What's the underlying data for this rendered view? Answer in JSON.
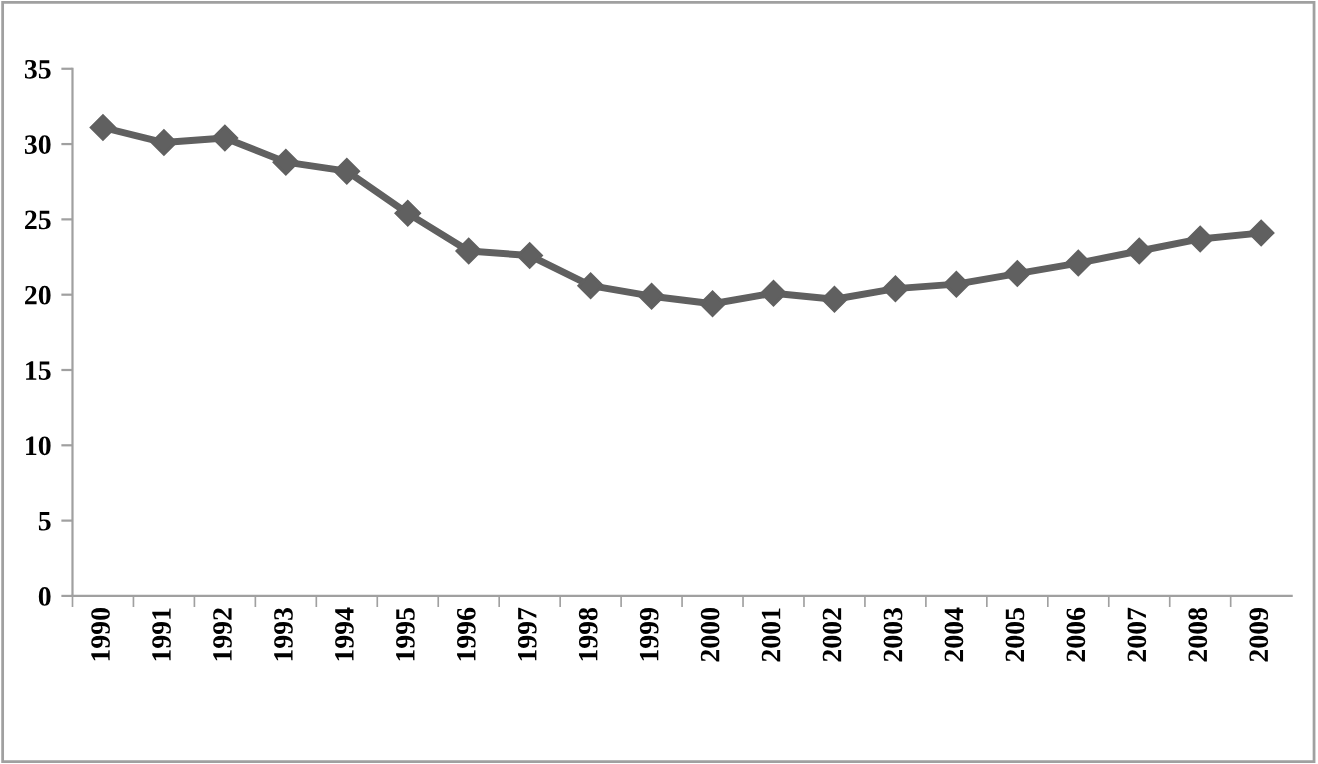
{
  "chart_data": {
    "type": "line",
    "categories": [
      "1990",
      "1991",
      "1992",
      "1993",
      "1994",
      "1995",
      "1996",
      "1997",
      "1998",
      "1999",
      "2000",
      "2001",
      "2002",
      "2003",
      "2004",
      "2005",
      "2006",
      "2007",
      "2008",
      "2009"
    ],
    "series": [
      {
        "color": "#606060",
        "values": [
          31.1,
          30.1,
          30.4,
          28.8,
          28.2,
          25.4,
          22.9,
          22.6,
          20.6,
          19.9,
          19.4,
          20.1,
          19.7,
          20.4,
          20.7,
          21.4,
          22.1,
          22.9,
          23.7,
          24.1
        ]
      }
    ],
    "ylim": [
      0,
      35
    ],
    "yticks": [
      0,
      5,
      10,
      15,
      20,
      25,
      30,
      35
    ],
    "grid": false,
    "legend": false,
    "marker": "diamond",
    "line_style": "solid"
  }
}
